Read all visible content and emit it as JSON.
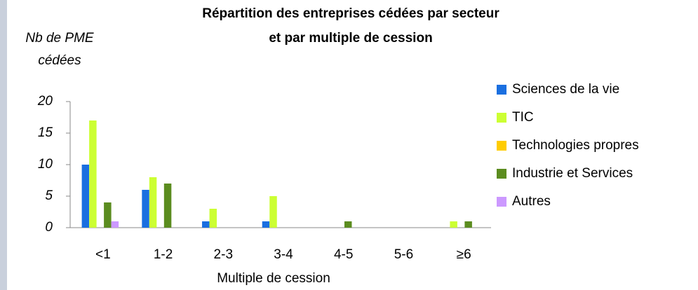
{
  "chart_data": {
    "type": "bar",
    "title": [
      "Répartition des entreprises cédées par secteur",
      "et par multiple de cession"
    ],
    "y_label": [
      "Nb de PME",
      "cédées"
    ],
    "x_label": "Multiple de cession",
    "categories": [
      "<1",
      "1-2",
      "2-3",
      "3-4",
      "4-5",
      "5-6",
      "≥6"
    ],
    "series": [
      {
        "name": "Sciences de la vie",
        "color": "#1a6fe0",
        "values": [
          10,
          6,
          1,
          1,
          0,
          0,
          0
        ]
      },
      {
        "name": "TIC",
        "color": "#ccff33",
        "values": [
          17,
          8,
          3,
          5,
          0,
          0,
          1
        ]
      },
      {
        "name": "Technologies propres",
        "color": "#ffcc00",
        "values": [
          0,
          0,
          0,
          0,
          0,
          0,
          0
        ]
      },
      {
        "name": "Industrie et Services",
        "color": "#5b8c1f",
        "values": [
          4,
          7,
          0,
          0,
          1,
          0,
          1
        ]
      },
      {
        "name": "Autres",
        "color": "#cc99ff",
        "values": [
          1,
          0,
          0,
          0,
          0,
          0,
          0
        ]
      }
    ],
    "ylim": [
      0,
      20
    ],
    "yticks": [
      0,
      5,
      10,
      15,
      20
    ],
    "grid": false,
    "legend": "right"
  }
}
